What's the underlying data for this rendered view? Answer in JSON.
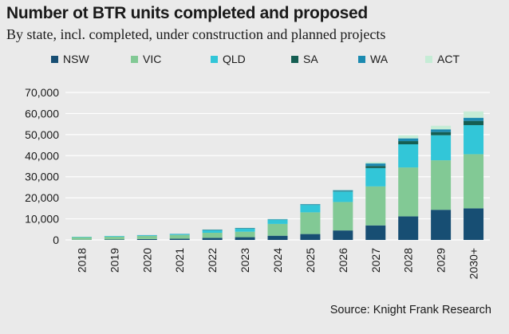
{
  "title": "Number ot BTR units completed and proposed",
  "subtitle": "By state, incl. completed, under construction and planned projects",
  "source": "Source: Knight Frank Research",
  "colors": {
    "NSW": "#174e73",
    "VIC": "#82c995",
    "QLD": "#32c6d8",
    "SA": "#155e52",
    "WA": "#1b8ab0",
    "ACT": "#c6ecd6",
    "background": "#eaeaea",
    "gridline": "#ffffff"
  },
  "chart_data": {
    "type": "bar",
    "stacked": true,
    "categories": [
      "2018",
      "2019",
      "2020",
      "2021",
      "2022",
      "2023",
      "2024",
      "2025",
      "2026",
      "2027",
      "2028",
      "2029",
      "2030+"
    ],
    "series": [
      {
        "name": "NSW",
        "values": [
          100,
          200,
          400,
          600,
          1000,
          1300,
          2000,
          2800,
          4500,
          6900,
          11200,
          14300,
          15000
        ]
      },
      {
        "name": "VIC",
        "values": [
          1200,
          1400,
          1500,
          1800,
          2400,
          2600,
          5600,
          10300,
          13500,
          18500,
          23200,
          23500,
          25700
        ]
      },
      {
        "name": "QLD",
        "values": [
          200,
          300,
          300,
          400,
          1200,
          1500,
          2000,
          3500,
          5000,
          8700,
          11000,
          11900,
          13800
        ]
      },
      {
        "name": "SA",
        "values": [
          0,
          0,
          0,
          0,
          100,
          100,
          100,
          100,
          200,
          1000,
          1500,
          1500,
          2000
        ]
      },
      {
        "name": "WA",
        "values": [
          0,
          0,
          100,
          100,
          200,
          200,
          200,
          300,
          400,
          1200,
          1300,
          1300,
          1500
        ]
      },
      {
        "name": "ACT",
        "values": [
          0,
          0,
          0,
          0,
          100,
          100,
          100,
          100,
          200,
          700,
          1500,
          1700,
          3000
        ]
      }
    ],
    "yticks": [
      "0",
      "10,000",
      "20,000",
      "30,000",
      "40,000",
      "50,000",
      "60,000",
      "70,000"
    ],
    "ylim": [
      0,
      70000
    ],
    "grid": true,
    "legend_position": "top"
  }
}
